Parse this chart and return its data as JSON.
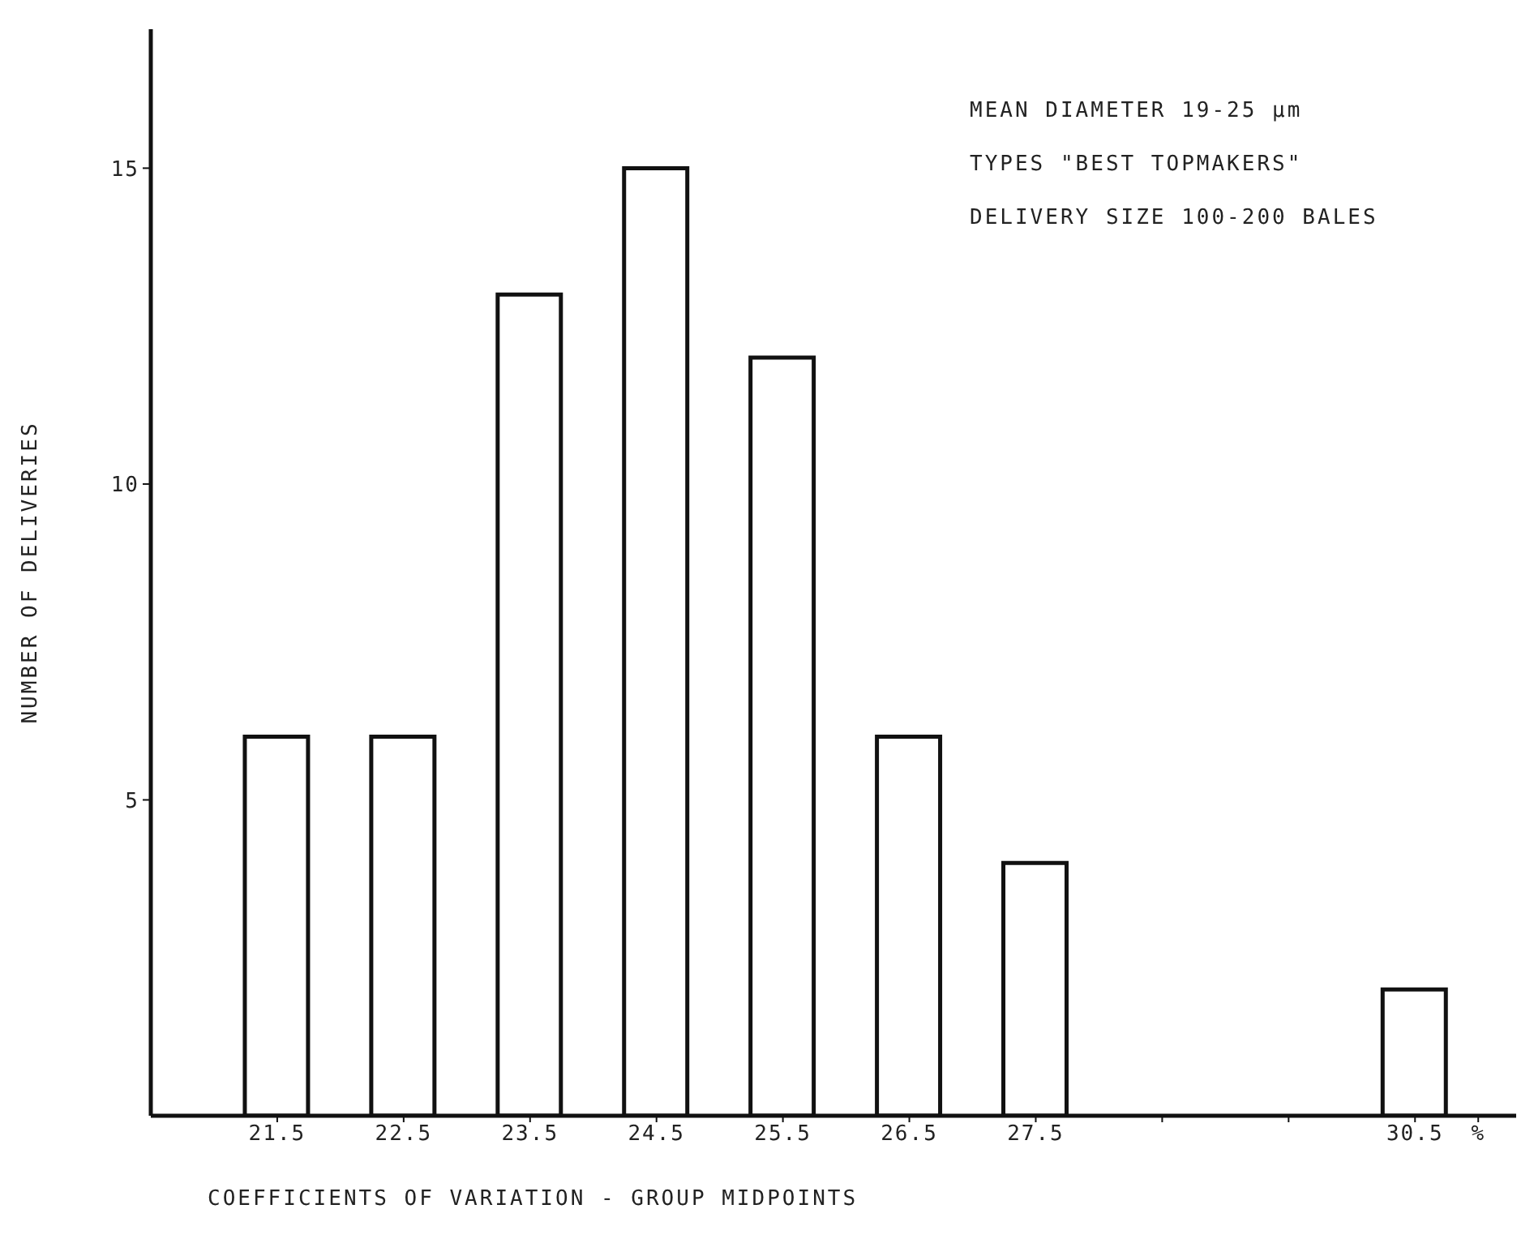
{
  "chart_data": {
    "type": "bar",
    "xlabel": "COEFFICIENTS OF VARIATION - GROUP MIDPOINTS",
    "ylabel": "NUMBER OF DELIVERIES",
    "annotations": [
      "MEAN DIAMETER 19-25 µm",
      "TYPES \"BEST TOPMAKERS\"",
      "DELIVERY SIZE 100-200 BALES"
    ],
    "x": [
      21.5,
      22.5,
      23.5,
      24.5,
      25.5,
      26.5,
      27.5,
      30.5
    ],
    "values": [
      6,
      6,
      13,
      15,
      12,
      6,
      4,
      2
    ],
    "color": "#ffffff",
    "xlim": [
      20.5,
      31.3
    ],
    "xticks": [
      21.5,
      22.5,
      23.5,
      24.5,
      25.5,
      26.5,
      27.5,
      {
        "value": 28.5,
        "label": null
      },
      {
        "value": 29.5,
        "label": null
      },
      30.5,
      {
        "value": 31,
        "label": "%"
      }
    ],
    "ylim": [
      0,
      17.2
    ],
    "yticks": [
      5,
      10,
      15
    ]
  }
}
